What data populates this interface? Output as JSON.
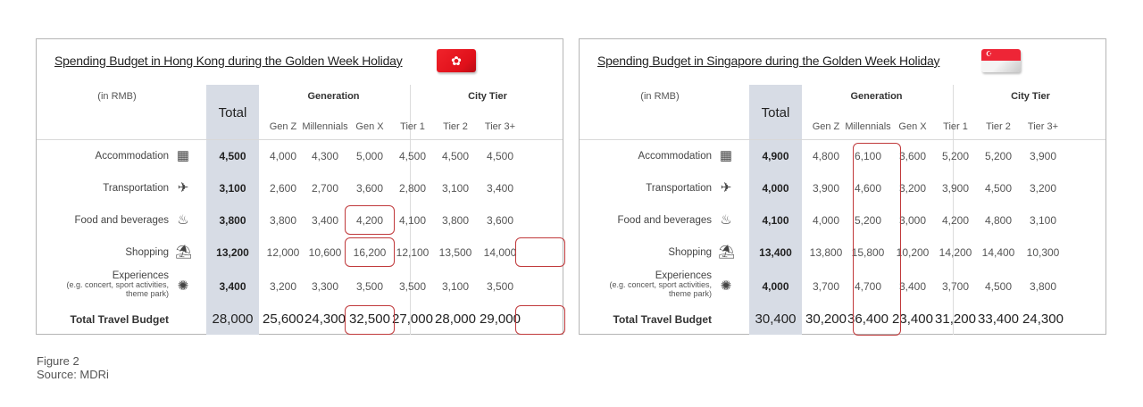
{
  "chart_data": [
    {
      "type": "table",
      "title": "Spending Budget in Hong Kong during the Golden Week Holiday",
      "unit_label": "(in RMB)",
      "column_groups": [
        {
          "name": "Total",
          "columns": [
            "Total"
          ]
        },
        {
          "name": "Generation",
          "columns": [
            "Gen Z",
            "Millennials",
            "Gen X"
          ]
        },
        {
          "name": "City Tier",
          "columns": [
            "Tier 1",
            "Tier 2",
            "Tier 3+"
          ]
        }
      ],
      "columns": [
        "Total",
        "Gen Z",
        "Millennials",
        "Gen X",
        "Tier 1",
        "Tier 2",
        "Tier 3+"
      ],
      "rows": [
        {
          "label": "Accommodation",
          "values": [
            4500,
            4000,
            4300,
            5000,
            4500,
            4500,
            4500
          ]
        },
        {
          "label": "Transportation",
          "values": [
            3100,
            2600,
            2700,
            3600,
            2800,
            3100,
            3400
          ]
        },
        {
          "label": "Food and beverages",
          "values": [
            3800,
            3800,
            3400,
            4200,
            4100,
            3800,
            3600
          ]
        },
        {
          "label": "Shopping",
          "values": [
            13200,
            12000,
            10600,
            16200,
            12100,
            13500,
            14000
          ]
        },
        {
          "label": "Experiences (e.g. concert, sport activities, theme park)",
          "values": [
            3400,
            3200,
            3300,
            3500,
            3500,
            3100,
            3500
          ]
        },
        {
          "label": "Total Travel Budget",
          "values": [
            28000,
            25600,
            24300,
            32500,
            27000,
            28000,
            29000
          ]
        }
      ],
      "highlighted_cells": [
        {
          "row": "Food and beverages",
          "column": "Gen X"
        },
        {
          "row": "Shopping",
          "column": "Gen X"
        },
        {
          "row": "Shopping",
          "column": "Tier 3+"
        },
        {
          "row": "Total Travel Budget",
          "column": "Gen X"
        },
        {
          "row": "Total Travel Budget",
          "column": "Tier 3+"
        }
      ]
    },
    {
      "type": "table",
      "title": "Spending Budget in Singapore during the Golden Week Holiday",
      "unit_label": "(in RMB)",
      "column_groups": [
        {
          "name": "Total",
          "columns": [
            "Total"
          ]
        },
        {
          "name": "Generation",
          "columns": [
            "Gen Z",
            "Millennials",
            "Gen X"
          ]
        },
        {
          "name": "City Tier",
          "columns": [
            "Tier 1",
            "Tier 2",
            "Tier 3+"
          ]
        }
      ],
      "columns": [
        "Total",
        "Gen Z",
        "Millennials",
        "Gen X",
        "Tier 1",
        "Tier 2",
        "Tier 3+"
      ],
      "rows": [
        {
          "label": "Accommodation",
          "values": [
            4900,
            4800,
            6100,
            3600,
            5200,
            5200,
            3900
          ]
        },
        {
          "label": "Transportation",
          "values": [
            4000,
            3900,
            4600,
            3200,
            3900,
            4500,
            3200
          ]
        },
        {
          "label": "Food and beverages",
          "values": [
            4100,
            4000,
            5200,
            3000,
            4200,
            4800,
            3100
          ]
        },
        {
          "label": "Shopping",
          "values": [
            13400,
            13800,
            15800,
            10200,
            14200,
            14400,
            10300
          ]
        },
        {
          "label": "Experiences (e.g. concert, sport activities, theme park)",
          "values": [
            4000,
            3700,
            4700,
            3400,
            3700,
            4500,
            3800
          ]
        },
        {
          "label": "Total Travel Budget",
          "values": [
            30400,
            30200,
            36400,
            23400,
            31200,
            33400,
            24300
          ]
        }
      ],
      "highlighted_cells": [
        {
          "column": "Millennials",
          "rows": "all"
        }
      ]
    }
  ],
  "hk": {
    "title": "Spending Budget in Hong Kong during the Golden Week Holiday",
    "flag_icon": "hong-kong-flag",
    "unit": "(in RMB)",
    "total_header": "Total",
    "group_generation": "Generation",
    "group_city_tier": "City Tier",
    "cols": [
      "Gen Z",
      "Millennials",
      "Gen X",
      "Tier 1",
      "Tier 2",
      "Tier 3+"
    ],
    "rows": [
      {
        "label": "Accommodation",
        "icon": "hotel-icon",
        "total": "4,500",
        "vals": [
          "4,000",
          "4,300",
          "5,000",
          "4,500",
          "4,500",
          "4,500"
        ]
      },
      {
        "label": "Transportation",
        "icon": "airplane-icon",
        "total": "3,100",
        "vals": [
          "2,600",
          "2,700",
          "3,600",
          "2,800",
          "3,100",
          "3,400"
        ]
      },
      {
        "label": "Food and beverages",
        "icon": "food-icon",
        "total": "3,800",
        "vals": [
          "3,800",
          "3,400",
          "4,200",
          "4,100",
          "3,800",
          "3,600"
        ]
      },
      {
        "label": "Shopping",
        "icon": "shopping-icon",
        "total": "13,200",
        "vals": [
          "12,000",
          "10,600",
          "16,200",
          "12,100",
          "13,500",
          "14,000"
        ]
      },
      {
        "label": "Experiences",
        "sub1": "(e.g. concert, sport activities,",
        "sub2": "theme park)",
        "icon": "ferris-wheel-icon",
        "total": "3,400",
        "vals": [
          "3,200",
          "3,300",
          "3,500",
          "3,500",
          "3,100",
          "3,500"
        ]
      },
      {
        "label": "Total Travel Budget",
        "total": "28,000",
        "vals": [
          "25,600",
          "24,300",
          "32,500",
          "27,000",
          "28,000",
          "29,000"
        ]
      }
    ]
  },
  "sg": {
    "title": "Spending Budget in Singapore during the Golden Week Holiday",
    "flag_icon": "singapore-flag",
    "unit": "(in RMB)",
    "total_header": "Total",
    "group_generation": "Generation",
    "group_city_tier": "City Tier",
    "cols": [
      "Gen Z",
      "Millennials",
      "Gen X",
      "Tier 1",
      "Tier 2",
      "Tier 3+"
    ],
    "rows": [
      {
        "label": "Accommodation",
        "icon": "hotel-icon",
        "total": "4,900",
        "vals": [
          "4,800",
          "6,100",
          "3,600",
          "5,200",
          "5,200",
          "3,900"
        ]
      },
      {
        "label": "Transportation",
        "icon": "airplane-icon",
        "total": "4,000",
        "vals": [
          "3,900",
          "4,600",
          "3,200",
          "3,900",
          "4,500",
          "3,200"
        ]
      },
      {
        "label": "Food and beverages",
        "icon": "food-icon",
        "total": "4,100",
        "vals": [
          "4,000",
          "5,200",
          "3,000",
          "4,200",
          "4,800",
          "3,100"
        ]
      },
      {
        "label": "Shopping",
        "icon": "shopping-icon",
        "total": "13,400",
        "vals": [
          "13,800",
          "15,800",
          "10,200",
          "14,200",
          "14,400",
          "10,300"
        ]
      },
      {
        "label": "Experiences",
        "sub1": "(e.g. concert, sport activities,",
        "sub2": "theme park)",
        "icon": "ferris-wheel-icon",
        "total": "4,000",
        "vals": [
          "3,700",
          "4,700",
          "3,400",
          "3,700",
          "4,500",
          "3,800"
        ]
      },
      {
        "label": "Total Travel Budget",
        "total": "30,400",
        "vals": [
          "30,200",
          "36,400",
          "23,400",
          "31,200",
          "33,400",
          "24,300"
        ]
      }
    ]
  },
  "colors": {
    "highlight_border": "#c0393b",
    "total_column_bg": "#d7dce5",
    "hk_flag_red": "#e8141c",
    "sg_flag_red": "#ee2536"
  },
  "caption": {
    "figure": "Figure 2",
    "source": "Source: MDRi"
  }
}
